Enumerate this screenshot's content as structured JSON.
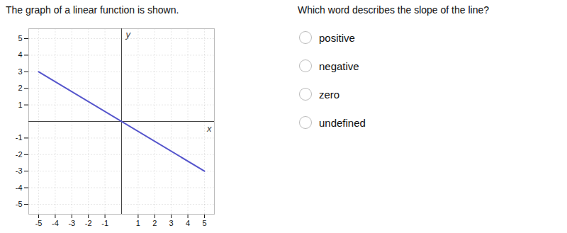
{
  "chart_data": {
    "type": "line",
    "title": "The graph of a linear function is shown.",
    "annotations": [
      "Which word describes the slope of the line?",
      "positive",
      "negative",
      "zero",
      "undefined"
    ],
    "x": [
      -5,
      5
    ],
    "values": [
      3.0,
      -3.0
    ],
    "color": "#5555cc",
    "xlabel": "x",
    "ylabel": "y",
    "xlim": [
      -5.6,
      5.6
    ],
    "ylim": [
      -5.6,
      5.6
    ],
    "xticks": [
      -5,
      -4,
      -3,
      -2,
      -1,
      1,
      2,
      3,
      4,
      5
    ],
    "yticks": [
      -5,
      -4,
      -3,
      -2,
      -1,
      1,
      2,
      3,
      4,
      5
    ],
    "grid": true
  }
}
